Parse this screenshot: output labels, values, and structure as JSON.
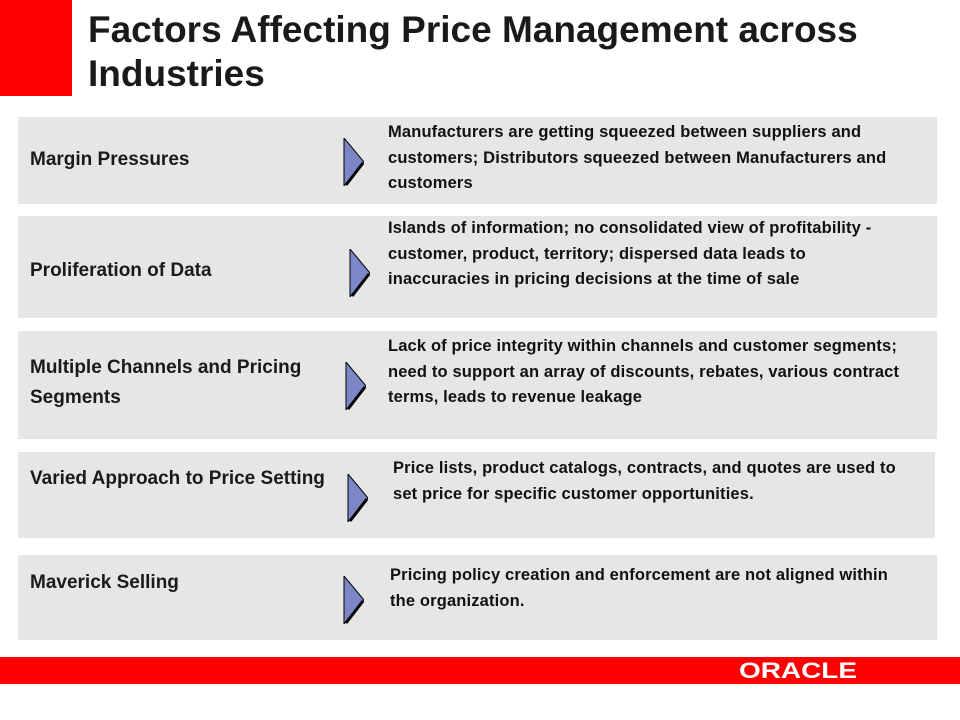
{
  "slide": {
    "title": "Factors Affecting Price Management across Industries",
    "rows": [
      {
        "label": "Margin Pressures",
        "description": "Manufacturers are getting squeezed between suppliers and customers; Distributors squeezed between Manufacturers and customers"
      },
      {
        "label": "Proliferation of Data",
        "description": "Islands of information; no consolidated view of profitability - customer, product, territory; dispersed data leads to inaccuracies in pricing decisions at the time of sale"
      },
      {
        "label": "Multiple Channels and Pricing Segments",
        "description": "Lack of price integrity within channels and customer segments; need to support an array of discounts, rebates, various contract terms, leads to revenue leakage"
      },
      {
        "label": "Varied Approach to Price Setting",
        "description": "Price lists, product catalogs, contracts, and quotes are used to set price for specific customer opportunities."
      },
      {
        "label": "Maverick Selling",
        "description": "Pricing policy creation and enforcement are not aligned within the organization."
      }
    ],
    "logo_text": "ORACLE"
  },
  "colors": {
    "accent_red": "#ff0000",
    "row_background": "#e6e6e6",
    "arrow_fill": "#7d86c6"
  },
  "icons": {
    "row_arrow": "chevron-right-icon",
    "brand": "oracle-logo"
  }
}
